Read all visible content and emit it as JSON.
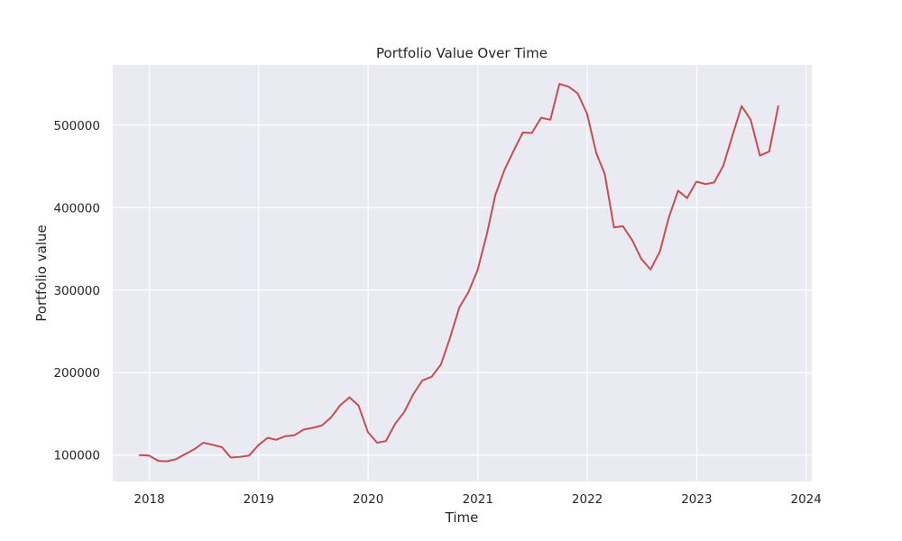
{
  "chart_data": {
    "type": "line",
    "title": "Portfolio Value Over Time",
    "xlabel": "Time",
    "ylabel": "Portfolio value",
    "x_ticks": [
      "2018",
      "2019",
      "2020",
      "2021",
      "2022",
      "2023",
      "2024"
    ],
    "y_ticks": [
      "100000",
      "200000",
      "300000",
      "400000",
      "500000"
    ],
    "x_tick_values": [
      "2018-01-01",
      "2019-01-01",
      "2020-01-01",
      "2021-01-01",
      "2022-01-01",
      "2023-01-01",
      "2024-01-01"
    ],
    "y_tick_values": [
      100000,
      200000,
      300000,
      400000,
      500000
    ],
    "xlim": [
      "2017-09-01",
      "2024-01-20"
    ],
    "ylim": [
      68000,
      573000
    ],
    "grid": true,
    "series": [
      {
        "color": "#c44e52",
        "x": [
          "2017-11-30",
          "2017-12-31",
          "2018-01-31",
          "2018-02-28",
          "2018-03-31",
          "2018-04-30",
          "2018-05-31",
          "2018-06-30",
          "2018-07-31",
          "2018-08-31",
          "2018-09-30",
          "2018-10-31",
          "2018-11-30",
          "2018-12-31",
          "2019-01-31",
          "2019-02-28",
          "2019-03-31",
          "2019-04-30",
          "2019-05-31",
          "2019-06-30",
          "2019-07-31",
          "2019-08-31",
          "2019-09-30",
          "2019-10-31",
          "2019-11-30",
          "2019-12-31",
          "2020-01-31",
          "2020-02-29",
          "2020-03-31",
          "2020-04-30",
          "2020-05-31",
          "2020-06-30",
          "2020-07-31",
          "2020-08-31",
          "2020-09-30",
          "2020-10-31",
          "2020-11-30",
          "2020-12-31",
          "2021-01-31",
          "2021-02-28",
          "2021-03-31",
          "2021-04-30",
          "2021-05-31",
          "2021-06-30",
          "2021-07-31",
          "2021-08-31",
          "2021-09-30",
          "2021-10-31",
          "2021-11-30",
          "2021-12-31",
          "2022-01-31",
          "2022-02-28",
          "2022-03-31",
          "2022-04-30",
          "2022-05-31",
          "2022-06-30",
          "2022-07-31",
          "2022-08-31",
          "2022-09-30",
          "2022-10-31",
          "2022-11-30",
          "2022-12-31",
          "2023-01-31",
          "2023-02-28",
          "2023-03-31",
          "2023-04-30",
          "2023-05-31",
          "2023-06-30",
          "2023-07-31",
          "2023-08-31",
          "2023-09-30"
        ],
        "y": [
          100000,
          99500,
          93000,
          92500,
          95000,
          101000,
          107000,
          115000,
          112500,
          109500,
          97000,
          98000,
          99500,
          112000,
          121000,
          118500,
          123000,
          124000,
          131000,
          133000,
          136000,
          146000,
          160500,
          170000,
          160000,
          128000,
          115000,
          117000,
          138000,
          152000,
          174000,
          190500,
          195000,
          210000,
          242000,
          279000,
          297000,
          324000,
          368000,
          415000,
          446000,
          468500,
          491000,
          490500,
          509000,
          506500,
          550000,
          546500,
          538500,
          514000,
          466000,
          441000,
          376000,
          377500,
          360500,
          338000,
          325000,
          346500,
          388000,
          420500,
          411500,
          431500,
          428500,
          430500,
          451000,
          487000,
          523000,
          506500,
          463000,
          468000,
          523000
        ]
      }
    ]
  }
}
